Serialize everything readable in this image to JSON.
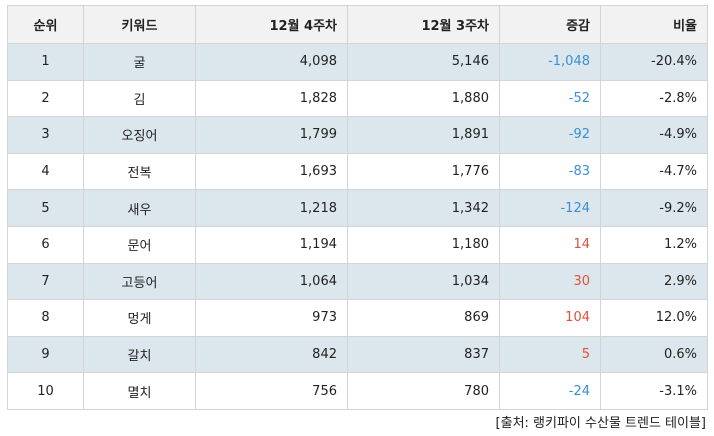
{
  "table": {
    "headers": [
      "순위",
      "키워드",
      "12월 4주차",
      "12월 3주차",
      "증감",
      "비율"
    ],
    "rows": [
      {
        "rank": "1",
        "keyword": "굴",
        "w4": "4,098",
        "w3": "5,146",
        "change": "-1,048",
        "ratio": "-20.4%",
        "dir": "neg"
      },
      {
        "rank": "2",
        "keyword": "김",
        "w4": "1,828",
        "w3": "1,880",
        "change": "-52",
        "ratio": "-2.8%",
        "dir": "neg"
      },
      {
        "rank": "3",
        "keyword": "오징어",
        "w4": "1,799",
        "w3": "1,891",
        "change": "-92",
        "ratio": "-4.9%",
        "dir": "neg"
      },
      {
        "rank": "4",
        "keyword": "전복",
        "w4": "1,693",
        "w3": "1,776",
        "change": "-83",
        "ratio": "-4.7%",
        "dir": "neg"
      },
      {
        "rank": "5",
        "keyword": "새우",
        "w4": "1,218",
        "w3": "1,342",
        "change": "-124",
        "ratio": "-9.2%",
        "dir": "neg"
      },
      {
        "rank": "6",
        "keyword": "문어",
        "w4": "1,194",
        "w3": "1,180",
        "change": "14",
        "ratio": "1.2%",
        "dir": "pos"
      },
      {
        "rank": "7",
        "keyword": "고등어",
        "w4": "1,064",
        "w3": "1,034",
        "change": "30",
        "ratio": "2.9%",
        "dir": "pos"
      },
      {
        "rank": "8",
        "keyword": "멍게",
        "w4": "973",
        "w3": "869",
        "change": "104",
        "ratio": "12.0%",
        "dir": "pos"
      },
      {
        "rank": "9",
        "keyword": "갈치",
        "w4": "842",
        "w3": "837",
        "change": "5",
        "ratio": "0.6%",
        "dir": "pos"
      },
      {
        "rank": "10",
        "keyword": "멸치",
        "w4": "756",
        "w3": "780",
        "change": "-24",
        "ratio": "-3.1%",
        "dir": "neg"
      }
    ]
  },
  "source": "[출처: 랭키파이 수산물 트렌드 테이블]",
  "colors": {
    "negative": "#3a8fd6",
    "positive": "#e0503a",
    "row_band": "#dbe7ec",
    "header_bg": "#f2f2f2"
  }
}
